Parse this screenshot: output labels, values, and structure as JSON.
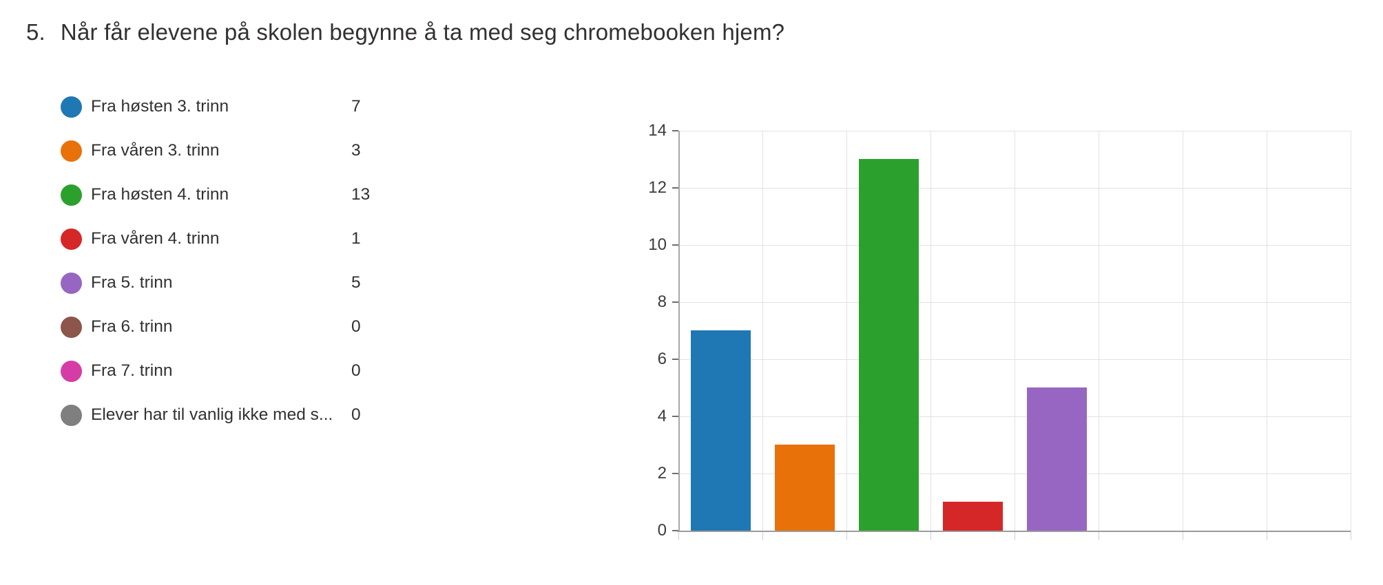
{
  "question": {
    "number": "5.",
    "text": "Når får elevene på skolen begynne å ta med seg chromebooken hjem?"
  },
  "chart_data": {
    "type": "bar",
    "title": "",
    "xlabel": "",
    "ylabel": "",
    "categories": [
      "Fra høsten 3. trinn",
      "Fra våren 3. trinn",
      "Fra høsten 4. trinn",
      "Fra våren 4. trinn",
      "Fra 5. trinn",
      "Fra 6. trinn",
      "Fra 7. trinn",
      "Elever har til vanlig ikke med s..."
    ],
    "values": [
      7,
      3,
      13,
      1,
      5,
      0,
      0,
      0
    ],
    "colors": [
      "#1f77b4",
      "#e8710a",
      "#2ca02c",
      "#d62728",
      "#9666c2",
      "#8c564b",
      "#d63ca6",
      "#7f7f7f"
    ],
    "ylim": [
      0,
      14
    ],
    "yticks": [
      0,
      2,
      4,
      6,
      8,
      10,
      12,
      14
    ],
    "grid": true,
    "legend_position": "left",
    "x_tick_labels_shown": false
  }
}
